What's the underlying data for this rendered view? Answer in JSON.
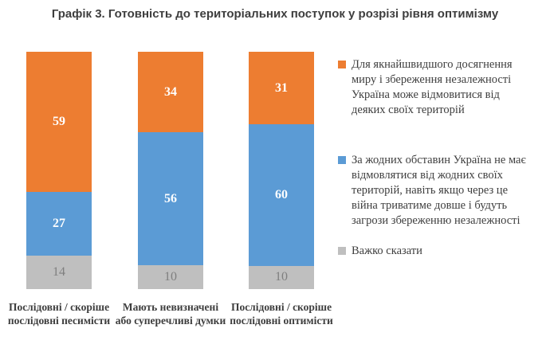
{
  "title": "Графік 3. Готовність до територіальних поступок у розрізі рівня оптимізму",
  "colors": {
    "orange": "#ED7D31",
    "blue": "#5B9BD5",
    "gray": "#BFBFBF",
    "text": "#3E3E3E",
    "value_on_color": "#FFFFFF",
    "value_on_gray": "#7F7F7F",
    "background": "#FFFFFF"
  },
  "chart_data": {
    "type": "bar",
    "stacked": true,
    "orientation": "vertical",
    "title": "Графік 3. Готовність до територіальних поступок у розрізі рівня оптимізму",
    "categories": [
      "Послідовні / скоріше послідовні песимісти",
      "Мають невизначені або суперечливі думки",
      "Послідовні / скоріше послідовні оптимісти"
    ],
    "series": [
      {
        "name": "Для якнайшвидшого досягнення миру і збереження незалежності Україна може відмовитися від деяких своїх територій",
        "color": "#ED7D31",
        "values": [
          59,
          34,
          31
        ],
        "value_color": "#FFFFFF",
        "value_bold": true
      },
      {
        "name": "За жодних обставин Україна не має відмовлятися від жодних своїх територій, навіть якщо через це війна триватиме довше і будуть загрози збереженню незалежності",
        "color": "#5B9BD5",
        "values": [
          27,
          56,
          60
        ],
        "value_color": "#FFFFFF",
        "value_bold": true
      },
      {
        "name": "Важко сказати",
        "color": "#BFBFBF",
        "values": [
          14,
          10,
          10
        ],
        "value_color": "#7F7F7F",
        "value_bold": false
      }
    ],
    "ylim": [
      0,
      100
    ],
    "grid": false,
    "axis_lines": false,
    "legend_position": "right",
    "data_labels": "inside-center"
  }
}
